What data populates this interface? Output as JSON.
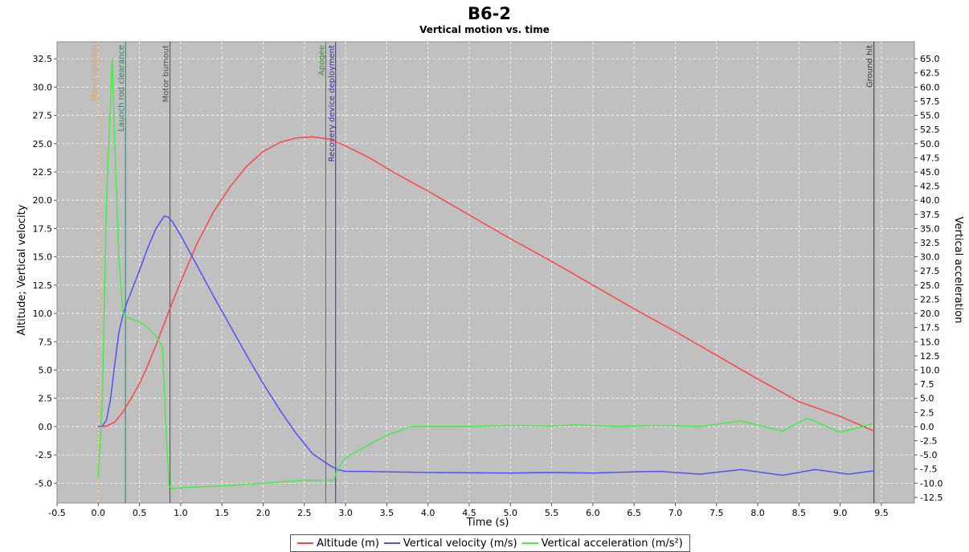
{
  "chart_data": {
    "type": "line",
    "title": "B6-2",
    "subtitle": "Vertical motion vs. time",
    "xlabel": "Time (s)",
    "ylabel_left": "Altitude; Vertical velocity",
    "ylabel_right": "Vertical acceleration",
    "xlim": [
      -0.5,
      9.9
    ],
    "ylim_left": [
      -6.75,
      34.0
    ],
    "ylim_right": [
      -13.5,
      68.0
    ],
    "x_ticks": [
      "-0.5",
      "0.0",
      "0.5",
      "1.0",
      "1.5",
      "2.0",
      "2.5",
      "3.0",
      "3.5",
      "4.0",
      "4.5",
      "5.0",
      "5.5",
      "6.0",
      "6.5",
      "7.0",
      "7.5",
      "8.0",
      "8.5",
      "9.0",
      "9.5"
    ],
    "y_left_ticks": [
      "-5.0",
      "-2.5",
      "0.0",
      "2.5",
      "5.0",
      "7.5",
      "10.0",
      "12.5",
      "15.0",
      "17.5",
      "20.0",
      "22.5",
      "25.0",
      "27.5",
      "30.0",
      "32.5"
    ],
    "y_right_ticks": [
      "-12.5",
      "-10.0",
      "-7.5",
      "-5.0",
      "-2.5",
      "0.0",
      "2.5",
      "5.0",
      "7.5",
      "10.0",
      "12.5",
      "15.0",
      "17.5",
      "20.0",
      "22.5",
      "25.0",
      "27.5",
      "30.0",
      "32.5",
      "35.0",
      "37.5",
      "40.0",
      "42.5",
      "45.0",
      "47.5",
      "50.0",
      "52.5",
      "55.0",
      "57.5",
      "60.0",
      "62.5",
      "65.0"
    ],
    "grid": true,
    "legend_position": "bottom",
    "events": [
      {
        "label": "Motor ignition",
        "x": 0.0,
        "color": "#e8a050",
        "dashed": true
      },
      {
        "label": "Launch rod clearance",
        "x": 0.33,
        "color": "#2e7d6e"
      },
      {
        "label": "Motor burnout",
        "x": 0.87,
        "color": "#5a4a3a"
      },
      {
        "label": "Apogee",
        "x": 2.76,
        "color": "#3a8a3a"
      },
      {
        "label": "Recovery device deployment",
        "x": 2.88,
        "color": "#3030b0"
      },
      {
        "label": "Ground hit",
        "x": 9.41,
        "color": "#333333"
      }
    ],
    "series": [
      {
        "name": "Altitude (m)",
        "color": "#ff4444",
        "axis": "left",
        "x": [
          0.0,
          0.1,
          0.2,
          0.3,
          0.4,
          0.5,
          0.6,
          0.7,
          0.8,
          0.9,
          1.0,
          1.2,
          1.4,
          1.6,
          1.8,
          2.0,
          2.2,
          2.4,
          2.6,
          2.8,
          3.0,
          3.3,
          3.6,
          4.0,
          4.5,
          5.0,
          5.5,
          6.0,
          6.5,
          7.0,
          7.5,
          8.0,
          8.5,
          9.0,
          9.41
        ],
        "y": [
          0.0,
          0.05,
          0.4,
          1.3,
          2.5,
          3.8,
          5.4,
          7.2,
          9.1,
          11.0,
          12.8,
          16.2,
          19.0,
          21.2,
          23.0,
          24.3,
          25.1,
          25.5,
          25.6,
          25.4,
          24.8,
          23.7,
          22.4,
          20.8,
          18.7,
          16.6,
          14.6,
          12.5,
          10.4,
          8.4,
          6.3,
          4.2,
          2.2,
          0.9,
          -0.4
        ]
      },
      {
        "name": "Vertical velocity (m/s)",
        "color": "#5050ff",
        "axis": "left",
        "x": [
          0.0,
          0.05,
          0.1,
          0.15,
          0.2,
          0.25,
          0.3,
          0.35,
          0.4,
          0.5,
          0.6,
          0.7,
          0.8,
          0.85,
          0.9,
          1.0,
          1.2,
          1.4,
          1.6,
          1.8,
          2.0,
          2.2,
          2.4,
          2.6,
          2.8,
          2.9,
          3.0,
          3.2,
          3.5,
          4.0,
          5.0,
          5.5,
          6.0,
          6.5,
          6.8,
          7.3,
          7.8,
          8.3,
          8.7,
          9.1,
          9.41
        ],
        "y": [
          0.0,
          0.05,
          0.6,
          2.5,
          5.5,
          8.3,
          9.9,
          11.0,
          11.9,
          13.8,
          15.8,
          17.5,
          18.6,
          18.5,
          18.1,
          16.9,
          14.2,
          11.5,
          8.9,
          6.3,
          3.8,
          1.5,
          -0.6,
          -2.4,
          -3.4,
          -3.8,
          -3.95,
          -3.95,
          -4.0,
          -4.05,
          -4.1,
          -4.05,
          -4.1,
          -4.0,
          -3.95,
          -4.2,
          -3.8,
          -4.3,
          -3.8,
          -4.2,
          -3.9
        ]
      },
      {
        "name": "Vertical acceleration (m/s²)",
        "color": "#44ee44",
        "axis": "right",
        "x": [
          0.0,
          0.05,
          0.1,
          0.17,
          0.2,
          0.25,
          0.3,
          0.33,
          0.4,
          0.5,
          0.6,
          0.7,
          0.78,
          0.82,
          0.86,
          0.9,
          1.0,
          1.5,
          2.0,
          2.5,
          2.76,
          2.86,
          2.9,
          3.0,
          3.5,
          3.8,
          4.5,
          5.0,
          5.5,
          5.8,
          6.3,
          6.8,
          7.3,
          7.8,
          8.3,
          8.6,
          9.0,
          9.4
        ],
        "y": [
          -9.0,
          5.0,
          40.0,
          65.0,
          50.0,
          30.0,
          20.0,
          19.5,
          19.0,
          18.5,
          17.5,
          16.0,
          14.0,
          0.0,
          -10.5,
          -11.0,
          -10.8,
          -10.5,
          -10.0,
          -9.5,
          -9.5,
          -9.5,
          -7.5,
          -5.5,
          -1.5,
          0.0,
          0.0,
          0.2,
          0.1,
          0.3,
          0.0,
          0.2,
          0.0,
          1.0,
          -0.8,
          1.5,
          -1.0,
          0.5
        ]
      }
    ]
  }
}
